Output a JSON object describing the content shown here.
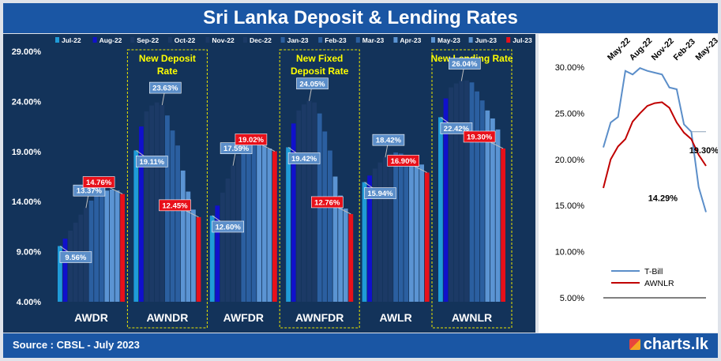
{
  "title": "Sri Lanka Deposit & Lending Rates",
  "source": "Source : CBSL - July 2023",
  "logo": "charts.lk",
  "colors": {
    "bar_first": "#1f9bd8",
    "bar_second": "#1010cc",
    "bar_dark": "#1c3a66",
    "bar_mid": "#2b5fa0",
    "bar_light": "#5b94d3",
    "bar_last": "#e8101a",
    "tbill": "#5b8ec9",
    "awnlr": "#c00000",
    "annot_border": "#e8e400"
  },
  "chart_data": [
    {
      "type": "bar",
      "title": "",
      "series": [
        "Jul-22",
        "Aug-22",
        "Sep-22",
        "Oct-22",
        "Nov-22",
        "Dec-22",
        "Jan-23",
        "Feb-23",
        "Mar-23",
        "Apr-23",
        "May-23",
        "Jun-23",
        "Jul-23"
      ],
      "ylim": [
        4,
        29
      ],
      "yticks": [
        "4.00%",
        "9.00%",
        "14.00%",
        "19.00%",
        "24.00%",
        "29.00%"
      ],
      "ytick_values": [
        4,
        9,
        14,
        19,
        24,
        29
      ],
      "groups": [
        {
          "name": "AWDR",
          "values": [
            9.56,
            10.3,
            11.1,
            11.9,
            12.7,
            13.37,
            14.1,
            14.6,
            14.9,
            15.1,
            15.2,
            15.1,
            14.76
          ],
          "labels": [
            {
              "text": "9.56%",
              "bar": 0,
              "red": false
            },
            {
              "text": "13.37%",
              "bar": 5,
              "red": false
            },
            {
              "text": "14.76%",
              "bar": 12,
              "red": true
            }
          ]
        },
        {
          "name": "AWNDR",
          "values": [
            19.11,
            21.5,
            23.0,
            23.6,
            23.9,
            23.63,
            22.6,
            21.1,
            19.6,
            17.1,
            15.0,
            13.2,
            12.45
          ],
          "labels": [
            {
              "text": "19.11%",
              "bar": 0,
              "red": false
            },
            {
              "text": "23.63%",
              "bar": 5,
              "red": false
            },
            {
              "text": "12.45%",
              "bar": 12,
              "red": true
            }
          ],
          "annotation": "New Deposit Rate"
        },
        {
          "name": "AWFDR",
          "values": [
            12.6,
            13.6,
            14.9,
            16.3,
            17.59,
            18.6,
            19.3,
            19.7,
            19.8,
            19.8,
            19.6,
            19.3,
            19.02
          ],
          "labels": [
            {
              "text": "12.60%",
              "bar": 0,
              "red": false
            },
            {
              "text": "17.59%",
              "bar": 4,
              "red": false
            },
            {
              "text": "19.02%",
              "bar": 12,
              "red": true
            }
          ]
        },
        {
          "name": "AWNFDR",
          "values": [
            19.42,
            21.8,
            23.1,
            23.7,
            24.05,
            23.9,
            22.8,
            21.0,
            19.1,
            16.5,
            14.6,
            13.3,
            12.76
          ],
          "labels": [
            {
              "text": "19.42%",
              "bar": 0,
              "red": false
            },
            {
              "text": "24.05%",
              "bar": 4,
              "red": false
            },
            {
              "text": "12.76%",
              "bar": 12,
              "red": true
            }
          ],
          "annotation": "New  Fixed Deposit Rate"
        },
        {
          "name": "AWLR",
          "values": [
            15.94,
            16.6,
            17.3,
            17.9,
            18.42,
            18.8,
            18.9,
            18.8,
            18.6,
            18.3,
            18.0,
            17.7,
            16.9
          ],
          "labels": [
            {
              "text": "15.94%",
              "bar": 0,
              "red": false
            },
            {
              "text": "18.42%",
              "bar": 4,
              "red": false
            },
            {
              "text": "16.90%",
              "bar": 12,
              "red": true
            }
          ]
        },
        {
          "name": "AWNLR",
          "values": [
            22.42,
            24.3,
            25.4,
            25.8,
            26.04,
            26.1,
            25.9,
            25.0,
            24.1,
            23.1,
            22.3,
            21.2,
            19.3
          ],
          "labels": [
            {
              "text": "22.42%",
              "bar": 0,
              "red": false
            },
            {
              "text": "26.04%",
              "bar": 4,
              "red": false
            },
            {
              "text": "19.30%",
              "bar": 12,
              "red": true
            }
          ],
          "annotation": "New Lending Rate"
        }
      ]
    },
    {
      "type": "line",
      "title": "",
      "x": [
        "Apr-22",
        "May-22",
        "Jun-22",
        "Jul-22",
        "Aug-22",
        "Sep-22",
        "Oct-22",
        "Nov-22",
        "Dec-22",
        "Jan-23",
        "Feb-23",
        "Mar-23",
        "Apr-23",
        "May-23",
        "Jun-23"
      ],
      "xtick_labels": [
        "May-22",
        "Aug-22",
        "Nov-22",
        "Feb-23",
        "May-23"
      ],
      "xtick_index": [
        1,
        4,
        7,
        10,
        13
      ],
      "ylim": [
        5,
        30
      ],
      "yticks": [
        "5.00%",
        "10.00%",
        "15.00%",
        "20.00%",
        "25.00%",
        "30.00%"
      ],
      "ytick_values": [
        5,
        10,
        15,
        20,
        25,
        30
      ],
      "series": [
        {
          "name": "T-Bill",
          "values": [
            21.3,
            24.0,
            24.6,
            29.6,
            29.2,
            29.9,
            29.6,
            29.4,
            29.2,
            27.8,
            27.6,
            23.8,
            23.0,
            17.0,
            14.29
          ]
        },
        {
          "name": "AWNLR",
          "values": [
            16.9,
            20.0,
            21.4,
            22.2,
            24.1,
            25.0,
            25.8,
            26.1,
            26.2,
            25.6,
            24.0,
            22.9,
            22.2,
            20.5,
            19.3
          ]
        }
      ],
      "annotations": [
        {
          "text": "19.30%",
          "series": "AWNLR"
        },
        {
          "text": "14.29%",
          "series": "T-Bill"
        }
      ]
    }
  ]
}
